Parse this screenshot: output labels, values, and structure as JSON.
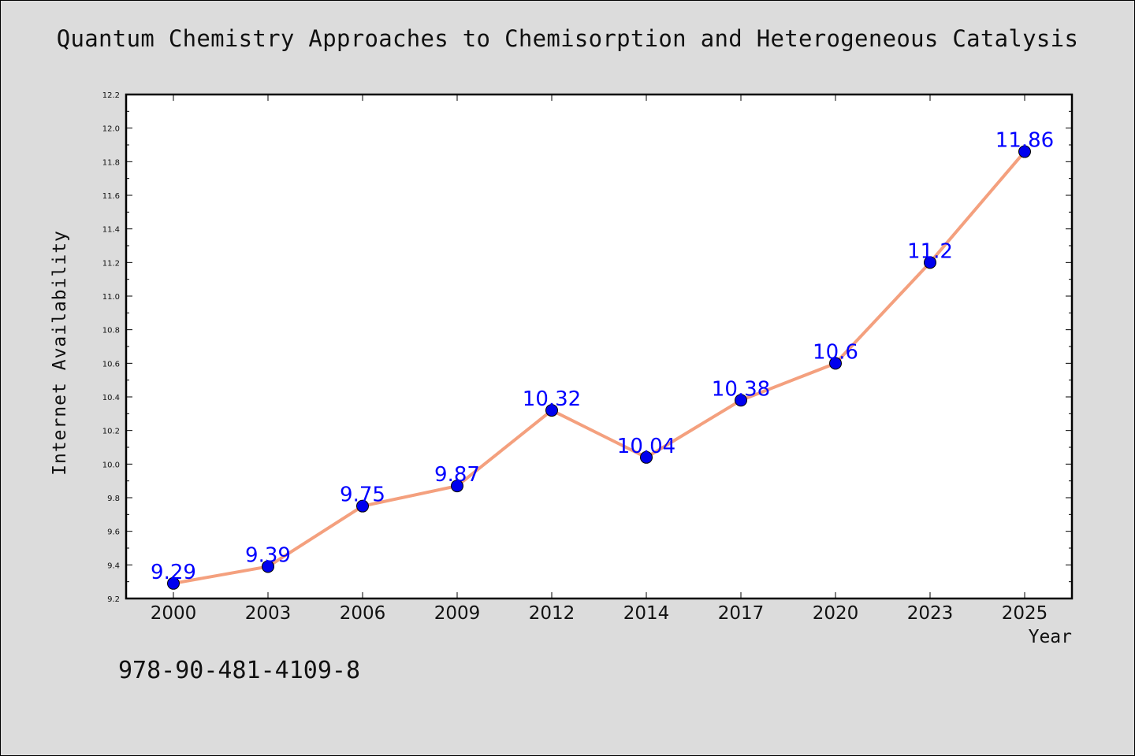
{
  "title": "Quantum Chemistry Approaches to Chemisorption and Heterogeneous Catalysis",
  "isbn": "978-90-481-4109-8",
  "chart_data": {
    "type": "line",
    "title": "Quantum Chemistry Approaches to Chemisorption and Heterogeneous Catalysis",
    "xlabel": "Year",
    "ylabel": "Internet Availability",
    "categories": [
      "2000",
      "2003",
      "2006",
      "2009",
      "2012",
      "2014",
      "2017",
      "2020",
      "2023",
      "2025"
    ],
    "series": [
      {
        "values": [
          9.29,
          9.39,
          9.75,
          9.87,
          10.32,
          10.04,
          10.38,
          10.6,
          11.2,
          11.86
        ],
        "labels": [
          "9.29",
          "9.39",
          "9.75",
          "9.87",
          "10.32",
          "10.04",
          "10.38",
          "10.6",
          "11.2",
          "11.86"
        ]
      }
    ],
    "ylim": [
      9.2,
      12.2
    ],
    "yticks": [
      "9.2",
      "9.4",
      "9.6",
      "9.8",
      "10.0",
      "10.2",
      "10.4",
      "10.6",
      "10.8",
      "11.0",
      "11.2",
      "11.4",
      "11.6",
      "11.8",
      "12.0",
      "12.2"
    ],
    "grid": false,
    "legend": "none",
    "colors": {
      "line": "#f4a07e",
      "marker": "#0000ee",
      "label": "#0000ff",
      "background": "#dcdcdc",
      "plot_area": "#ffffff"
    }
  }
}
